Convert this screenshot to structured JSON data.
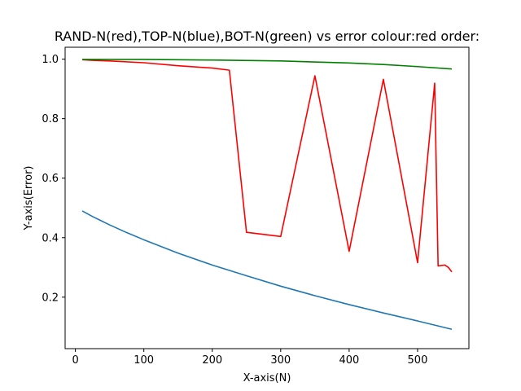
{
  "chart_data": {
    "type": "line",
    "title": "RAND-N(red),TOP-N(blue),BOT-N(green) vs error colour:red order:",
    "xlabel": "X-axis(N)",
    "ylabel": "Y-axis(Error)",
    "xlim": [
      -15,
      575
    ],
    "ylim": [
      0.027,
      1.04
    ],
    "xticks": [
      0,
      100,
      200,
      300,
      400,
      500
    ],
    "xtick_labels": [
      "0",
      "100",
      "200",
      "300",
      "400",
      "500"
    ],
    "yticks": [
      0.2,
      0.4,
      0.6,
      0.8,
      1.0
    ],
    "ytick_labels": [
      "0.2",
      "0.4",
      "0.6",
      "0.8",
      "1.0"
    ],
    "grid": false,
    "series": [
      {
        "color": "#1f77b4",
        "x": [
          10,
          25,
          50,
          75,
          100,
          150,
          200,
          250,
          300,
          350,
          400,
          450,
          500,
          525,
          550
        ],
        "y": [
          0.49,
          0.471,
          0.443,
          0.417,
          0.393,
          0.348,
          0.308,
          0.272,
          0.237,
          0.205,
          0.175,
          0.147,
          0.12,
          0.106,
          0.092
        ]
      },
      {
        "color": "#ff0000",
        "x": [
          10,
          25,
          50,
          100,
          150,
          200,
          225,
          250,
          300,
          350,
          400,
          450,
          500,
          525,
          530,
          540,
          545,
          550
        ],
        "y": [
          0.998,
          0.996,
          0.994,
          0.988,
          0.978,
          0.97,
          0.963,
          0.418,
          0.404,
          0.944,
          0.354,
          0.932,
          0.316,
          0.919,
          0.305,
          0.308,
          0.3,
          0.285
        ]
      },
      {
        "color": "#008000",
        "x": [
          10,
          100,
          200,
          300,
          400,
          450,
          500,
          550
        ],
        "y": [
          0.999,
          0.999,
          0.997,
          0.994,
          0.987,
          0.982,
          0.975,
          0.967
        ]
      }
    ]
  }
}
